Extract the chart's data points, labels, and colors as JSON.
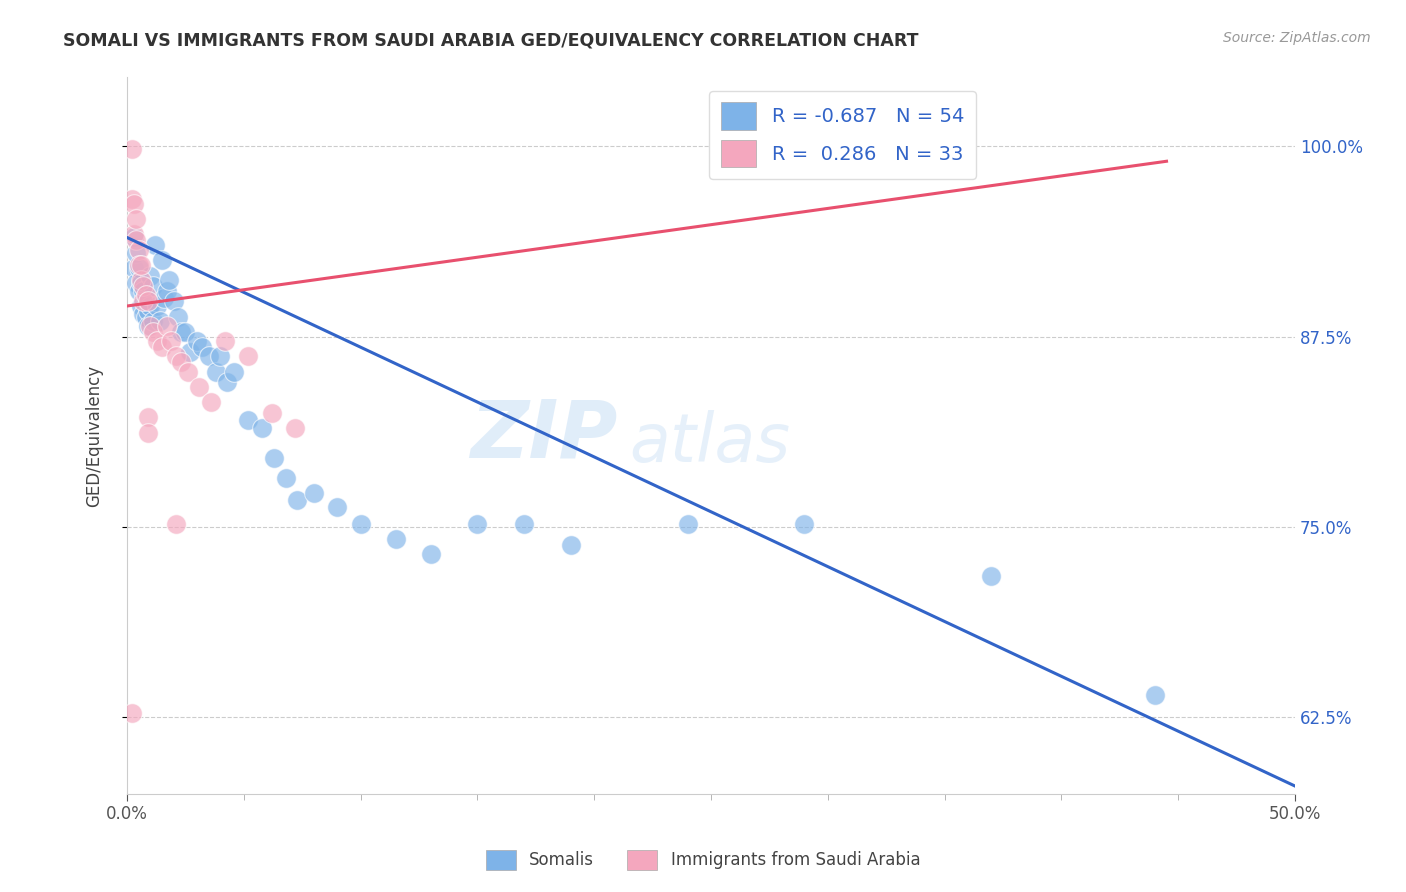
{
  "title": "SOMALI VS IMMIGRANTS FROM SAUDI ARABIA GED/EQUIVALENCY CORRELATION CHART",
  "source": "Source: ZipAtlas.com",
  "ylabel": "GED/Equivalency",
  "ytick_labels": [
    "100.0%",
    "87.5%",
    "75.0%",
    "62.5%"
  ],
  "ytick_values": [
    1.0,
    0.875,
    0.75,
    0.625
  ],
  "xmin": 0.0,
  "xmax": 0.5,
  "ymin": 0.575,
  "ymax": 1.045,
  "legend_blue_R": "-0.687",
  "legend_blue_N": "54",
  "legend_pink_R": "0.286",
  "legend_pink_N": "33",
  "legend_label_blue": "Somalis",
  "legend_label_pink": "Immigrants from Saudi Arabia",
  "blue_color": "#7EB3E8",
  "pink_color": "#F4A7BE",
  "blue_line_color": "#3264C8",
  "pink_line_color": "#E8506E",
  "watermark_zip": "ZIP",
  "watermark_atlas": "atlas",
  "blue_scatter_x": [
    0.003,
    0.003,
    0.004,
    0.004,
    0.005,
    0.005,
    0.006,
    0.006,
    0.007,
    0.007,
    0.008,
    0.008,
    0.009,
    0.009,
    0.01,
    0.01,
    0.011,
    0.011,
    0.012,
    0.013,
    0.014,
    0.015,
    0.016,
    0.017,
    0.018,
    0.02,
    0.022,
    0.023,
    0.025,
    0.027,
    0.03,
    0.032,
    0.035,
    0.038,
    0.04,
    0.043,
    0.046,
    0.052,
    0.058,
    0.063,
    0.068,
    0.073,
    0.08,
    0.09,
    0.1,
    0.115,
    0.13,
    0.15,
    0.17,
    0.19,
    0.24,
    0.29,
    0.37,
    0.44
  ],
  "blue_scatter_y": [
    0.94,
    0.92,
    0.93,
    0.91,
    0.92,
    0.905,
    0.91,
    0.895,
    0.905,
    0.89,
    0.9,
    0.888,
    0.892,
    0.882,
    0.915,
    0.895,
    0.908,
    0.885,
    0.935,
    0.895,
    0.885,
    0.925,
    0.9,
    0.905,
    0.912,
    0.898,
    0.888,
    0.878,
    0.878,
    0.865,
    0.872,
    0.868,
    0.862,
    0.852,
    0.862,
    0.845,
    0.852,
    0.82,
    0.815,
    0.795,
    0.782,
    0.768,
    0.772,
    0.763,
    0.752,
    0.742,
    0.732,
    0.752,
    0.752,
    0.738,
    0.752,
    0.752,
    0.718,
    0.64
  ],
  "pink_scatter_x": [
    0.002,
    0.002,
    0.003,
    0.003,
    0.004,
    0.004,
    0.005,
    0.005,
    0.006,
    0.006,
    0.007,
    0.007,
    0.008,
    0.009,
    0.01,
    0.011,
    0.013,
    0.015,
    0.017,
    0.019,
    0.021,
    0.023,
    0.026,
    0.031,
    0.036,
    0.042,
    0.052,
    0.062,
    0.072,
    0.009,
    0.009,
    0.021,
    0.002
  ],
  "pink_scatter_y": [
    0.998,
    0.965,
    0.962,
    0.942,
    0.952,
    0.938,
    0.932,
    0.922,
    0.912,
    0.922,
    0.898,
    0.908,
    0.902,
    0.898,
    0.882,
    0.878,
    0.872,
    0.868,
    0.882,
    0.872,
    0.862,
    0.858,
    0.852,
    0.842,
    0.832,
    0.872,
    0.862,
    0.825,
    0.815,
    0.822,
    0.812,
    0.752,
    0.628
  ],
  "blue_line_x": [
    0.0,
    0.5
  ],
  "blue_line_y": [
    0.94,
    0.58
  ],
  "pink_line_x": [
    0.0,
    0.445
  ],
  "pink_line_y": [
    0.895,
    0.99
  ]
}
